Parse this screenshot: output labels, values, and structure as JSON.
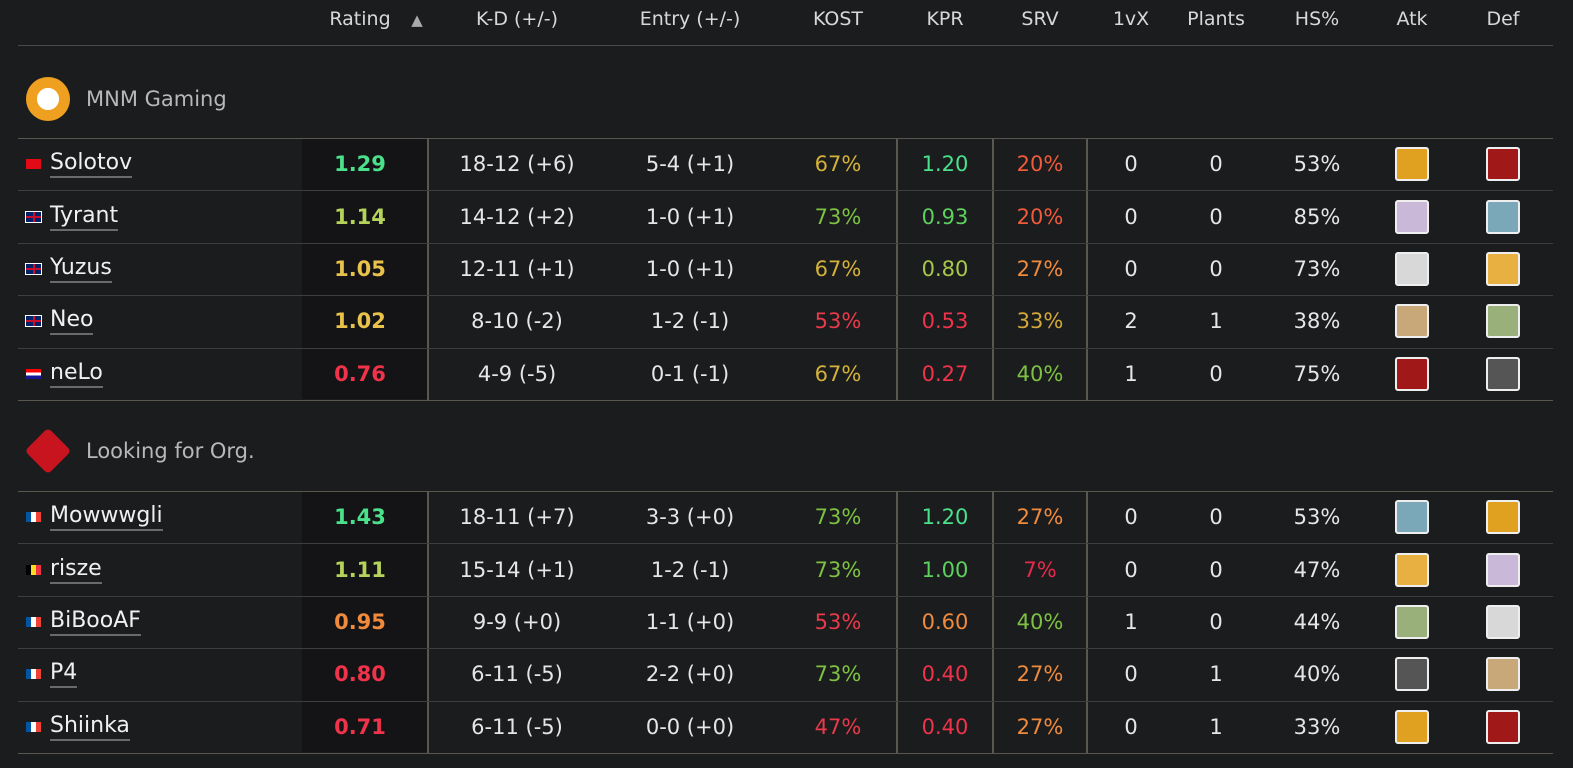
{
  "header": {
    "columns": [
      "Rating",
      "K-D (+/-)",
      "Entry (+/-)",
      "KOST",
      "KPR",
      "SRV",
      "1vX",
      "Plants",
      "HS%",
      "Atk",
      "Def"
    ],
    "sort_indicator": "▲"
  },
  "teams": [
    {
      "name": "MNM Gaming",
      "players": [
        [
          "Solotov",
          "1.29",
          "18-12 (+6)",
          "5-4 (+1)",
          "67%",
          "1.20",
          "20%",
          "0",
          "0",
          "53%"
        ],
        [
          "Tyrant",
          "1.14",
          "14-12 (+2)",
          "1-0 (+1)",
          "73%",
          "0.93",
          "20%",
          "0",
          "0",
          "85%"
        ],
        [
          "Yuzus",
          "1.05",
          "12-11 (+1)",
          "1-0 (+1)",
          "67%",
          "0.80",
          "27%",
          "0",
          "0",
          "73%"
        ],
        [
          "Neo",
          "1.02",
          "8-10 (-2)",
          "1-2 (-1)",
          "53%",
          "0.53",
          "33%",
          "2",
          "1",
          "38%"
        ],
        [
          "neLo",
          "0.76",
          "4-9 (-5)",
          "0-1 (-1)",
          "67%",
          "0.27",
          "40%",
          "1",
          "0",
          "75%"
        ]
      ]
    },
    {
      "name": "Looking for Org.",
      "players": [
        [
          "Mowwwgli",
          "1.43",
          "18-11 (+7)",
          "3-3 (+0)",
          "73%",
          "1.20",
          "27%",
          "0",
          "0",
          "53%"
        ],
        [
          "risze",
          "1.11",
          "15-14 (+1)",
          "1-2 (-1)",
          "73%",
          "1.00",
          "7%",
          "0",
          "0",
          "47%"
        ],
        [
          "BiBooAF",
          "0.95",
          "9-9 (+0)",
          "1-1 (+0)",
          "53%",
          "0.60",
          "40%",
          "1",
          "0",
          "44%"
        ],
        [
          "P4",
          "0.80",
          "6-11 (-5)",
          "2-2 (+0)",
          "73%",
          "0.40",
          "27%",
          "0",
          "1",
          "40%"
        ],
        [
          "Shiinka",
          "0.71",
          "6-11 (-5)",
          "0-0 (+0)",
          "47%",
          "0.40",
          "27%",
          "0",
          "1",
          "33%"
        ]
      ]
    }
  ]
}
